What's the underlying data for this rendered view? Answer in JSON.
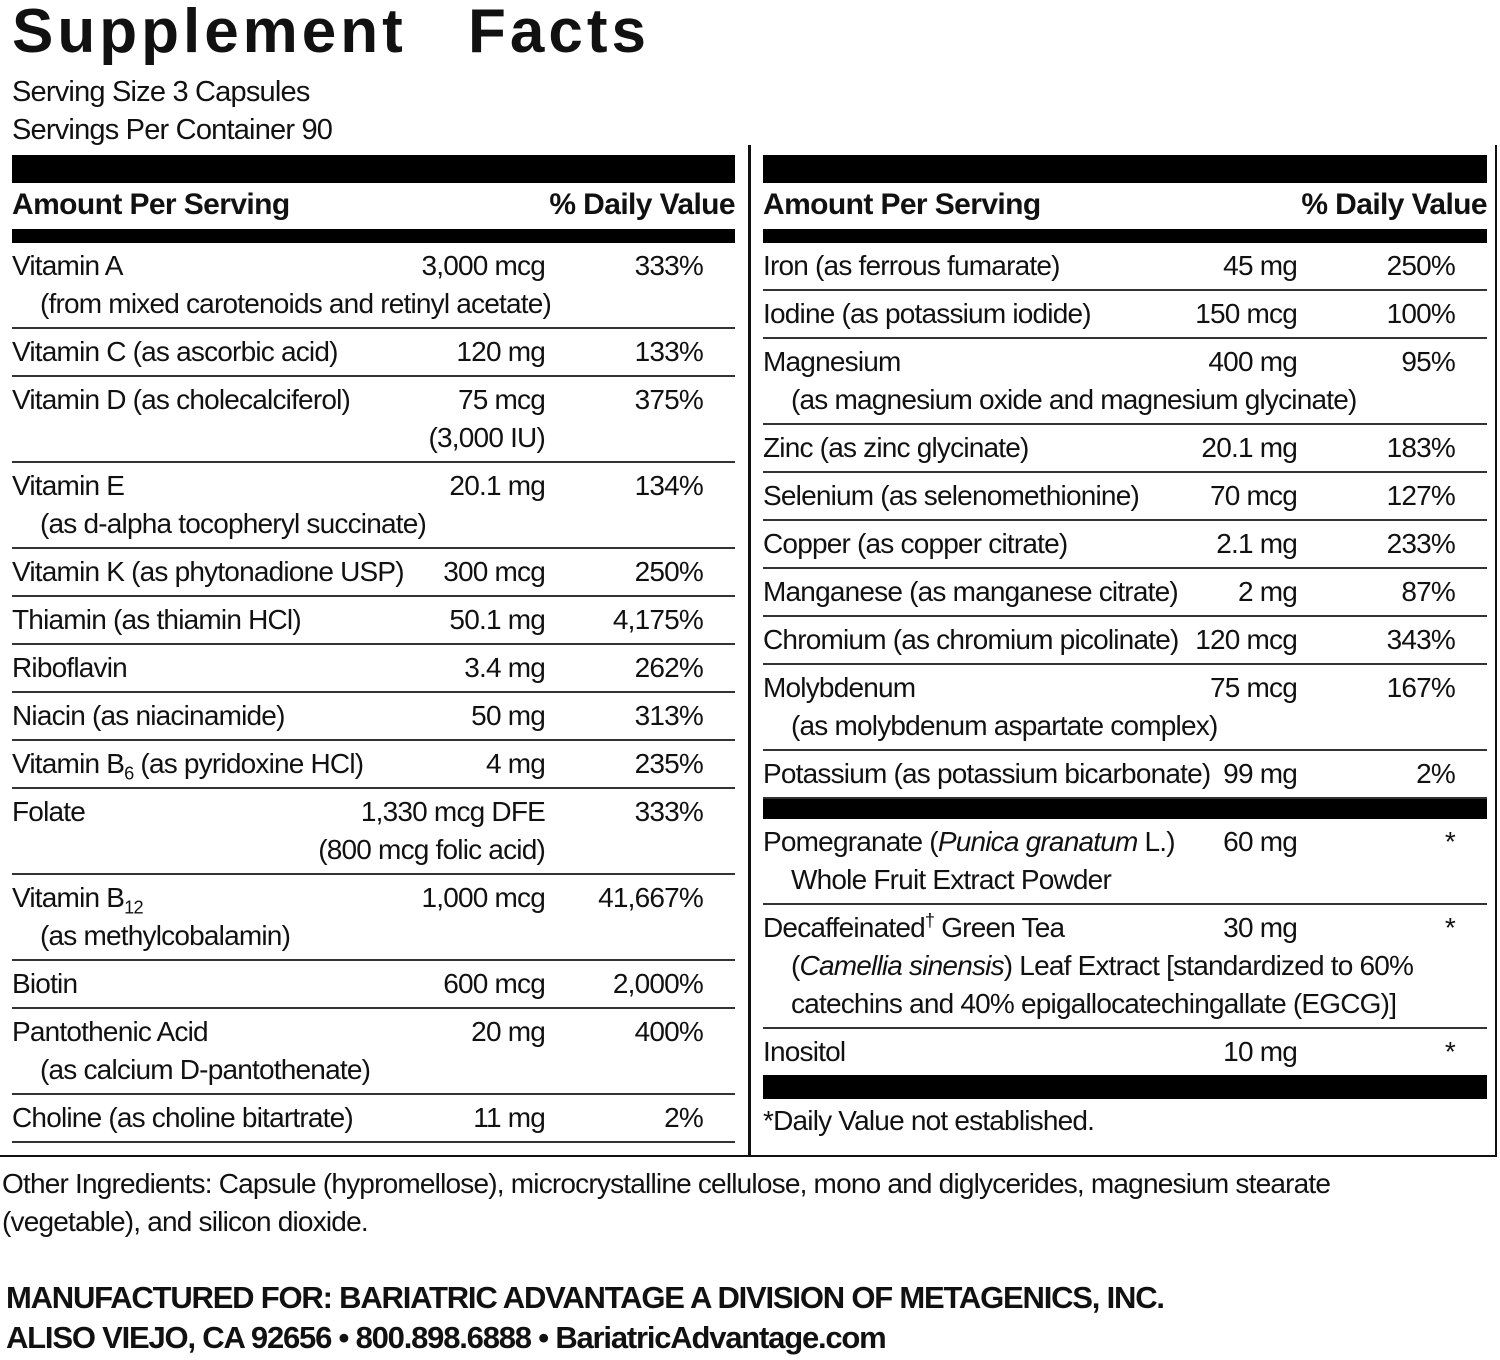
{
  "title": "Supplement Facts",
  "serving_size": "Serving Size 3 Capsules",
  "servings_per_container": "Servings Per Container 90",
  "left": {
    "header": {
      "amount": "Amount Per Serving",
      "dv": "% Daily Value"
    },
    "rows": [
      {
        "name": "Vitamin A",
        "detail": [
          "(from mixed carotenoids and retinyl acetate)"
        ],
        "amount": "3,000 mcg",
        "dv": "333%"
      },
      {
        "name": "Vitamin C (as ascorbic acid)",
        "amount": "120 mg",
        "dv": "133%"
      },
      {
        "name": "Vitamin D (as cholecalciferol)",
        "amount": "75 mcg",
        "amount_detail": "(3,000 IU)",
        "dv": "375%"
      },
      {
        "name": "Vitamin E",
        "detail": [
          "(as d-alpha tocopheryl succinate)"
        ],
        "amount": "20.1 mg",
        "dv": "134%"
      },
      {
        "name": "Vitamin K (as phytonadione USP)",
        "amount": "300 mcg",
        "dv": "250%"
      },
      {
        "name": "Thiamin (as thiamin HCl)",
        "amount": "50.1 mg",
        "dv": "4,175%"
      },
      {
        "name": "Riboflavin",
        "amount": "3.4 mg",
        "dv": "262%"
      },
      {
        "name": "Niacin (as niacinamide)",
        "amount": "50 mg",
        "dv": "313%"
      },
      {
        "name": [
          {
            "text": "Vitamin B"
          },
          {
            "text": "6",
            "style": "sub"
          },
          {
            "text": " (as pyridoxine HCl)"
          }
        ],
        "amount": "4 mg",
        "dv": "235%"
      },
      {
        "name": "Folate",
        "amount": "1,330 mcg DFE",
        "amount_detail": "(800 mcg folic acid)",
        "dv": "333%"
      },
      {
        "name": [
          {
            "text": "Vitamin B"
          },
          {
            "text": "12",
            "style": "sub"
          }
        ],
        "detail": [
          "(as methylcobalamin)"
        ],
        "amount": "1,000 mcg",
        "dv": "41,667%"
      },
      {
        "name": "Biotin",
        "amount": "600 mcg",
        "dv": "2,000%"
      },
      {
        "name": "Pantothenic Acid",
        "detail": [
          "(as calcium D-pantothenate)"
        ],
        "amount": "20 mg",
        "dv": "400%"
      },
      {
        "name": "Choline (as choline bitartrate)",
        "amount": "11 mg",
        "dv": "2%"
      }
    ]
  },
  "right": {
    "header": {
      "amount": "Amount Per Serving",
      "dv": "% Daily Value"
    },
    "rows": [
      {
        "name": "Iron (as ferrous fumarate)",
        "amount": "45 mg",
        "dv": "250%"
      },
      {
        "name": "Iodine (as potassium iodide)",
        "amount": "150 mcg",
        "dv": "100%"
      },
      {
        "name": "Magnesium",
        "detail": [
          "(as magnesium oxide and magnesium glycinate)"
        ],
        "amount": "400 mg",
        "dv": "95%"
      },
      {
        "name": "Zinc (as zinc glycinate)",
        "amount": "20.1 mg",
        "dv": "183%"
      },
      {
        "name": "Selenium (as selenomethionine)",
        "amount": "70 mcg",
        "dv": "127%"
      },
      {
        "name": "Copper (as copper citrate)",
        "amount": "2.1 mg",
        "dv": "233%"
      },
      {
        "name": "Manganese (as manganese citrate)",
        "amount": "2 mg",
        "dv": "87%"
      },
      {
        "name": "Chromium (as chromium picolinate)",
        "amount": "120 mcg",
        "dv": "343%"
      },
      {
        "name": "Molybdenum",
        "detail": [
          "(as molybdenum aspartate complex)"
        ],
        "amount": "75 mcg",
        "dv": "167%"
      },
      {
        "name": "Potassium (as potassium bicarbonate)",
        "amount": "99 mg",
        "dv": "2%"
      }
    ],
    "botanicals": [
      {
        "name": [
          {
            "text": "Pomegranate ("
          },
          {
            "text": "Punica granatum",
            "style": "italic"
          },
          {
            "text": " L.)"
          }
        ],
        "detail": [
          "Whole Fruit Extract Powder"
        ],
        "amount": "60 mg",
        "dv": "*"
      },
      {
        "name": [
          {
            "text": "Decaffeinated"
          },
          {
            "text": "†",
            "style": "sup"
          },
          {
            "text": " Green Tea"
          }
        ],
        "detail": [
          [
            {
              "text": "("
            },
            {
              "text": "Camellia sinensis",
              "style": "italic"
            },
            {
              "text": ") Leaf Extract [standardized to 60%"
            }
          ],
          "catechins and 40% epigallocatechingallate (EGCG)]"
        ],
        "amount": "30 mg",
        "dv": "*"
      },
      {
        "name": "Inositol",
        "amount": "10 mg",
        "dv": "*"
      }
    ],
    "footnote": "*Daily Value not established."
  },
  "other_ingredients": "Other Ingredients: Capsule (hypromellose), microcrystalline cellulose, mono and diglycerides, magnesium stearate (vegetable), and silicon dioxide.",
  "manufacturer": [
    "MANUFACTURED FOR: BARIATRIC ADVANTAGE A DIVISION OF METAGENICS, INC.",
    "ALISO VIEJO, CA 92656 • 800.898.6888 • BariatricAdvantage.com"
  ]
}
